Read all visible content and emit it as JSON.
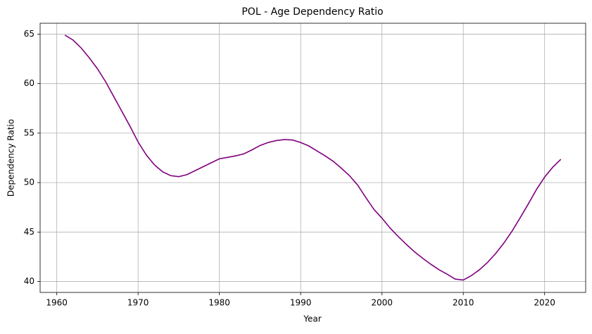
{
  "chart_data": {
    "type": "line",
    "title": "POL - Age Dependency Ratio",
    "x_label": "Year",
    "y_label": "Dependency Ratio",
    "x": [
      1961,
      1962,
      1963,
      1964,
      1965,
      1966,
      1967,
      1968,
      1969,
      1970,
      1971,
      1972,
      1973,
      1974,
      1975,
      1976,
      1977,
      1978,
      1979,
      1980,
      1981,
      1982,
      1983,
      1984,
      1985,
      1986,
      1987,
      1988,
      1989,
      1990,
      1991,
      1992,
      1993,
      1994,
      1995,
      1996,
      1997,
      1998,
      1999,
      2000,
      2001,
      2002,
      2003,
      2004,
      2005,
      2006,
      2007,
      2008,
      2009,
      2010,
      2011,
      2012,
      2013,
      2014,
      2015,
      2016,
      2017,
      2018,
      2019,
      2020,
      2021,
      2022
    ],
    "values": [
      64.9,
      64.4,
      63.6,
      62.6,
      61.5,
      60.2,
      58.7,
      57.2,
      55.7,
      54.1,
      52.8,
      51.8,
      51.1,
      50.7,
      50.6,
      50.8,
      51.2,
      51.6,
      52.0,
      52.4,
      52.55,
      52.7,
      52.9,
      53.3,
      53.75,
      54.05,
      54.25,
      54.35,
      54.3,
      54.05,
      53.7,
      53.2,
      52.7,
      52.15,
      51.45,
      50.7,
      49.75,
      48.5,
      47.3,
      46.4,
      45.4,
      44.55,
      43.75,
      43.0,
      42.35,
      41.75,
      41.2,
      40.75,
      40.25,
      40.15,
      40.6,
      41.2,
      41.95,
      42.85,
      43.9,
      45.1,
      46.45,
      47.85,
      49.3,
      50.55,
      51.55,
      52.35
    ],
    "color": "#800080",
    "xlim": [
      1957.95,
      2025.05
    ],
    "ylim": [
      38.9,
      66.1
    ],
    "xticks": [
      1960,
      1970,
      1980,
      1990,
      2000,
      2010,
      2020
    ],
    "yticks": [
      40,
      45,
      50,
      55,
      60,
      65
    ],
    "grid": true
  }
}
